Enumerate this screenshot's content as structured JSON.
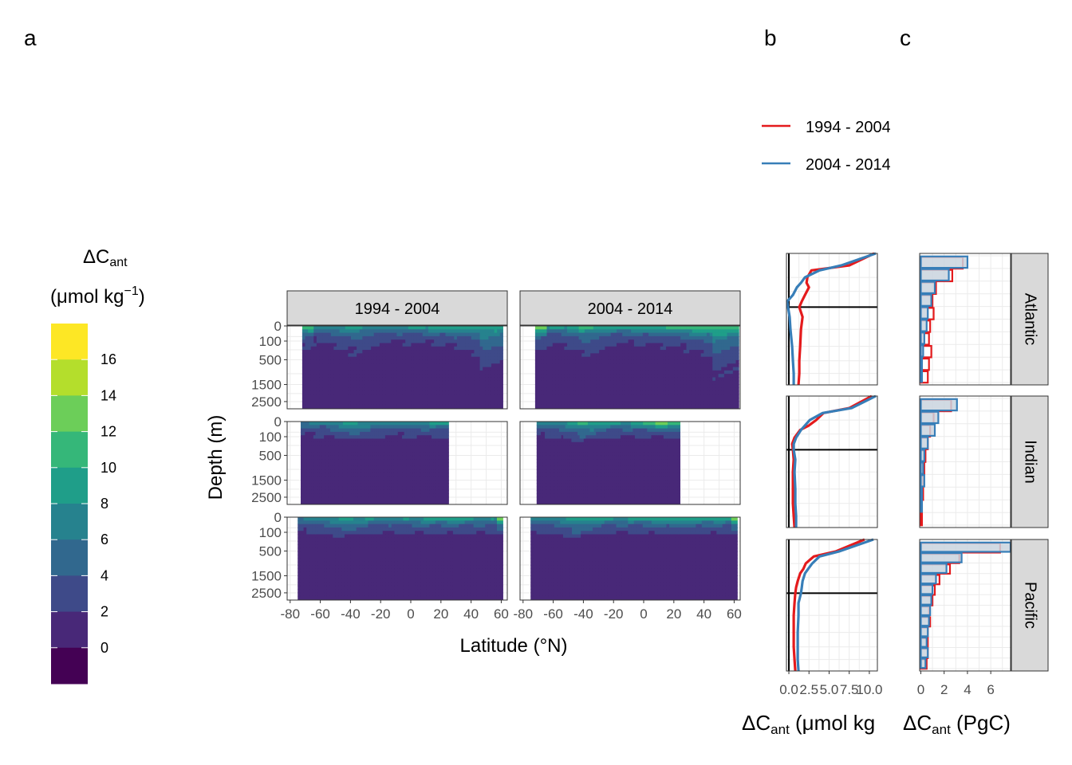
{
  "panel_labels": {
    "a": "a",
    "b": "b",
    "c": "c"
  },
  "colorbar": {
    "title_main": "ΔC",
    "title_sub": "ant",
    "unit_open": "(μmol kg",
    "unit_sup": "−1",
    "unit_close": ")",
    "levels": [
      18,
      16,
      14,
      12,
      10,
      8,
      6,
      4,
      2,
      0,
      -2
    ],
    "tick_labels": [
      "16",
      "14",
      "12",
      "10",
      "8",
      "6",
      "4",
      "2",
      "0"
    ],
    "colors": [
      "#FDE725",
      "#B4DE2C",
      "#6CCE59",
      "#35B779",
      "#1F9E89",
      "#26828E",
      "#31688E",
      "#3E4A89",
      "#482878",
      "#440154"
    ]
  },
  "chart_data": [
    {
      "type": "heatmap",
      "panel": "a",
      "facets_col": [
        "1994 - 2004",
        "2004 - 2014"
      ],
      "facets_row": [
        "Atlantic",
        "Indian",
        "Pacific"
      ],
      "xlabel": "Latitude (°N)",
      "ylabel": "Depth (m)",
      "x_ticks": [
        "-80",
        "-60",
        "-40",
        "-20",
        "0",
        "20",
        "40",
        "60"
      ],
      "x_tick_values": [
        -80,
        -60,
        -40,
        -20,
        0,
        20,
        40,
        60
      ],
      "y_ticks": [
        "0",
        "100",
        "500",
        "1500",
        "2500"
      ],
      "y_tick_values": [
        0,
        100,
        500,
        1500,
        2500
      ],
      "xlim": [
        -82,
        64
      ],
      "ylim": [
        3000,
        0
      ],
      "y_scale": "sqrt",
      "grid": true
    },
    {
      "type": "line",
      "panel": "b",
      "xlabel_main": "ΔC",
      "xlabel_sub": "ant",
      "xlabel_rest": " (μmol kg",
      "x_ticks": [
        "0.0",
        "2.5",
        "5.0",
        "7.5",
        "10.0"
      ],
      "x_tick_values": [
        0,
        2.5,
        5,
        7.5,
        10
      ],
      "xlim": [
        -0.3,
        11
      ],
      "y_scale": "sqrt",
      "ylim": [
        3000,
        0
      ],
      "legend_position": "top",
      "grid": true,
      "series": [
        {
          "name": "1994 - 2004",
          "color": "#E41A1C",
          "facets": {
            "Atlantic": {
              "depth": [
                0,
                25,
                50,
                100,
                150,
                200,
                300,
                400,
                500,
                700,
                1000,
                1500,
                2000,
                2500,
                3000
              ],
              "values": [
                10.6,
                7.5,
                2.8,
                2.3,
                2.2,
                2.5,
                2.0,
                1.6,
                1.3,
                1.7,
                1.5,
                1.4,
                1.3,
                1.3,
                1.2
              ]
            },
            "Indian": {
              "depth": [
                0,
                25,
                50,
                100,
                150,
                200,
                300,
                400,
                500,
                700,
                1000,
                1500,
                2000,
                2500,
                3000
              ],
              "values": [
                10.3,
                7.5,
                4.3,
                3.4,
                2.5,
                1.4,
                0.7,
                0.4,
                0.5,
                0.6,
                0.5,
                0.5,
                0.5,
                0.6,
                0.7
              ]
            },
            "Pacific": {
              "depth": [
                0,
                25,
                50,
                100,
                150,
                200,
                300,
                400,
                500,
                700,
                1000,
                1500,
                2000,
                2500,
                3000
              ],
              "values": [
                9.4,
                5.8,
                3.1,
                2.1,
                1.8,
                1.4,
                1.1,
                0.9,
                0.8,
                0.7,
                0.6,
                0.6,
                0.6,
                0.7,
                0.8
              ]
            }
          }
        },
        {
          "name": "2004 - 2014",
          "color": "#377EB8",
          "facets": {
            "Atlantic": {
              "depth": [
                0,
                25,
                50,
                100,
                150,
                200,
                300,
                400,
                500,
                700,
                1000,
                1500,
                2000,
                2500,
                3000
              ],
              "values": [
                10.8,
                6.5,
                3.8,
                2.0,
                1.5,
                1.0,
                0.5,
                -0.2,
                -0.1,
                0.1,
                0.2,
                0.4,
                0.5,
                0.6,
                0.6
              ]
            },
            "Indian": {
              "depth": [
                0,
                25,
                50,
                100,
                150,
                200,
                300,
                400,
                500,
                700,
                1000,
                1500,
                2000,
                2500,
                3000
              ],
              "values": [
                10.8,
                7.8,
                4.2,
                2.6,
                2.0,
                1.5,
                0.9,
                0.6,
                0.6,
                0.8,
                0.7,
                0.8,
                0.8,
                0.9,
                0.9
              ]
            },
            "Pacific": {
              "depth": [
                0,
                25,
                50,
                100,
                150,
                200,
                300,
                400,
                500,
                700,
                1000,
                1500,
                2000,
                2500,
                3000
              ],
              "values": [
                10.5,
                6.2,
                3.8,
                2.9,
                2.4,
                2.0,
                1.7,
                1.6,
                1.5,
                1.2,
                1.2,
                1.1,
                1.1,
                1.1,
                1.2
              ]
            }
          }
        }
      ]
    },
    {
      "type": "bar",
      "panel": "c",
      "orientation": "horizontal",
      "xlabel_main": "ΔC",
      "xlabel_sub": "ant",
      "xlabel_rest": " (PgC)",
      "x_ticks": [
        "0",
        "2",
        "4",
        "6"
      ],
      "x_tick_values": [
        0,
        2,
        4,
        6
      ],
      "xlim": [
        -0.1,
        7.7
      ],
      "grid": true,
      "series": [
        {
          "name": "1994 - 2004",
          "color": "#E41A1C",
          "facets": {
            "Atlantic": [
              3.6,
              2.7,
              1.3,
              1.0,
              1.1,
              0.8,
              0.7,
              0.9,
              0.7,
              0.6
            ],
            "Indian": [
              2.6,
              1.1,
              0.8,
              0.6,
              0.4,
              0.3,
              0.2,
              0.2,
              0.1,
              0.1
            ],
            "Pacific": [
              6.8,
              3.3,
              2.5,
              1.6,
              1.2,
              1.0,
              0.7,
              0.8,
              0.6,
              0.6,
              0.6,
              0.5
            ]
          }
        },
        {
          "name": "2004 - 2014",
          "color": "#377EB8",
          "facets": {
            "Atlantic": [
              4.0,
              2.4,
              1.2,
              0.9,
              0.6,
              0.5,
              0.3,
              0.2,
              0.1,
              0.1
            ],
            "Indian": [
              3.1,
              1.5,
              1.2,
              0.6,
              0.3,
              0.2,
              0.3,
              0.1,
              0.1,
              0.0
            ],
            "Pacific": [
              7.7,
              3.5,
              2.2,
              1.3,
              1.0,
              0.9,
              0.8,
              0.7,
              0.6,
              0.5,
              0.6,
              0.4
            ]
          }
        }
      ]
    }
  ],
  "legend": {
    "items": [
      "1994 - 2004",
      "2004 - 2014"
    ]
  }
}
